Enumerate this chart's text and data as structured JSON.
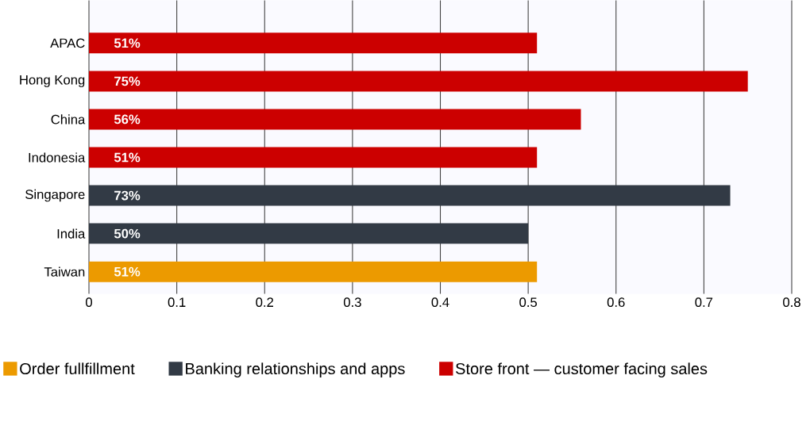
{
  "chart_data": {
    "type": "bar",
    "orientation": "horizontal",
    "categories": [
      "APAC",
      "Hong Kong",
      "China",
      "Indonesia",
      "Singapore",
      "India",
      "Taiwan"
    ],
    "series": [
      {
        "name": "Order fullfillment",
        "color": "#ec9a00",
        "values": [
          null,
          null,
          null,
          null,
          null,
          null,
          0.51
        ],
        "value_labels": [
          null,
          null,
          null,
          null,
          null,
          null,
          "51%"
        ]
      },
      {
        "name": "Banking relationships and apps",
        "color": "#323a45",
        "values": [
          null,
          null,
          null,
          null,
          0.73,
          0.5,
          null
        ],
        "value_labels": [
          null,
          null,
          null,
          null,
          "73%",
          "50%",
          null
        ]
      },
      {
        "name": "Store front — customer facing sales",
        "color": "#cc0000",
        "values": [
          0.51,
          0.75,
          0.56,
          0.51,
          null,
          null,
          null
        ],
        "value_labels": [
          "51%",
          "75%",
          "56%",
          "51%",
          null,
          null,
          null
        ]
      }
    ],
    "xlim": [
      0,
      0.8
    ],
    "xticks": [
      0,
      0.1,
      0.2,
      0.3,
      0.4,
      0.5,
      0.6,
      0.7,
      0.8
    ],
    "grid": "x",
    "legend": "bottom"
  }
}
